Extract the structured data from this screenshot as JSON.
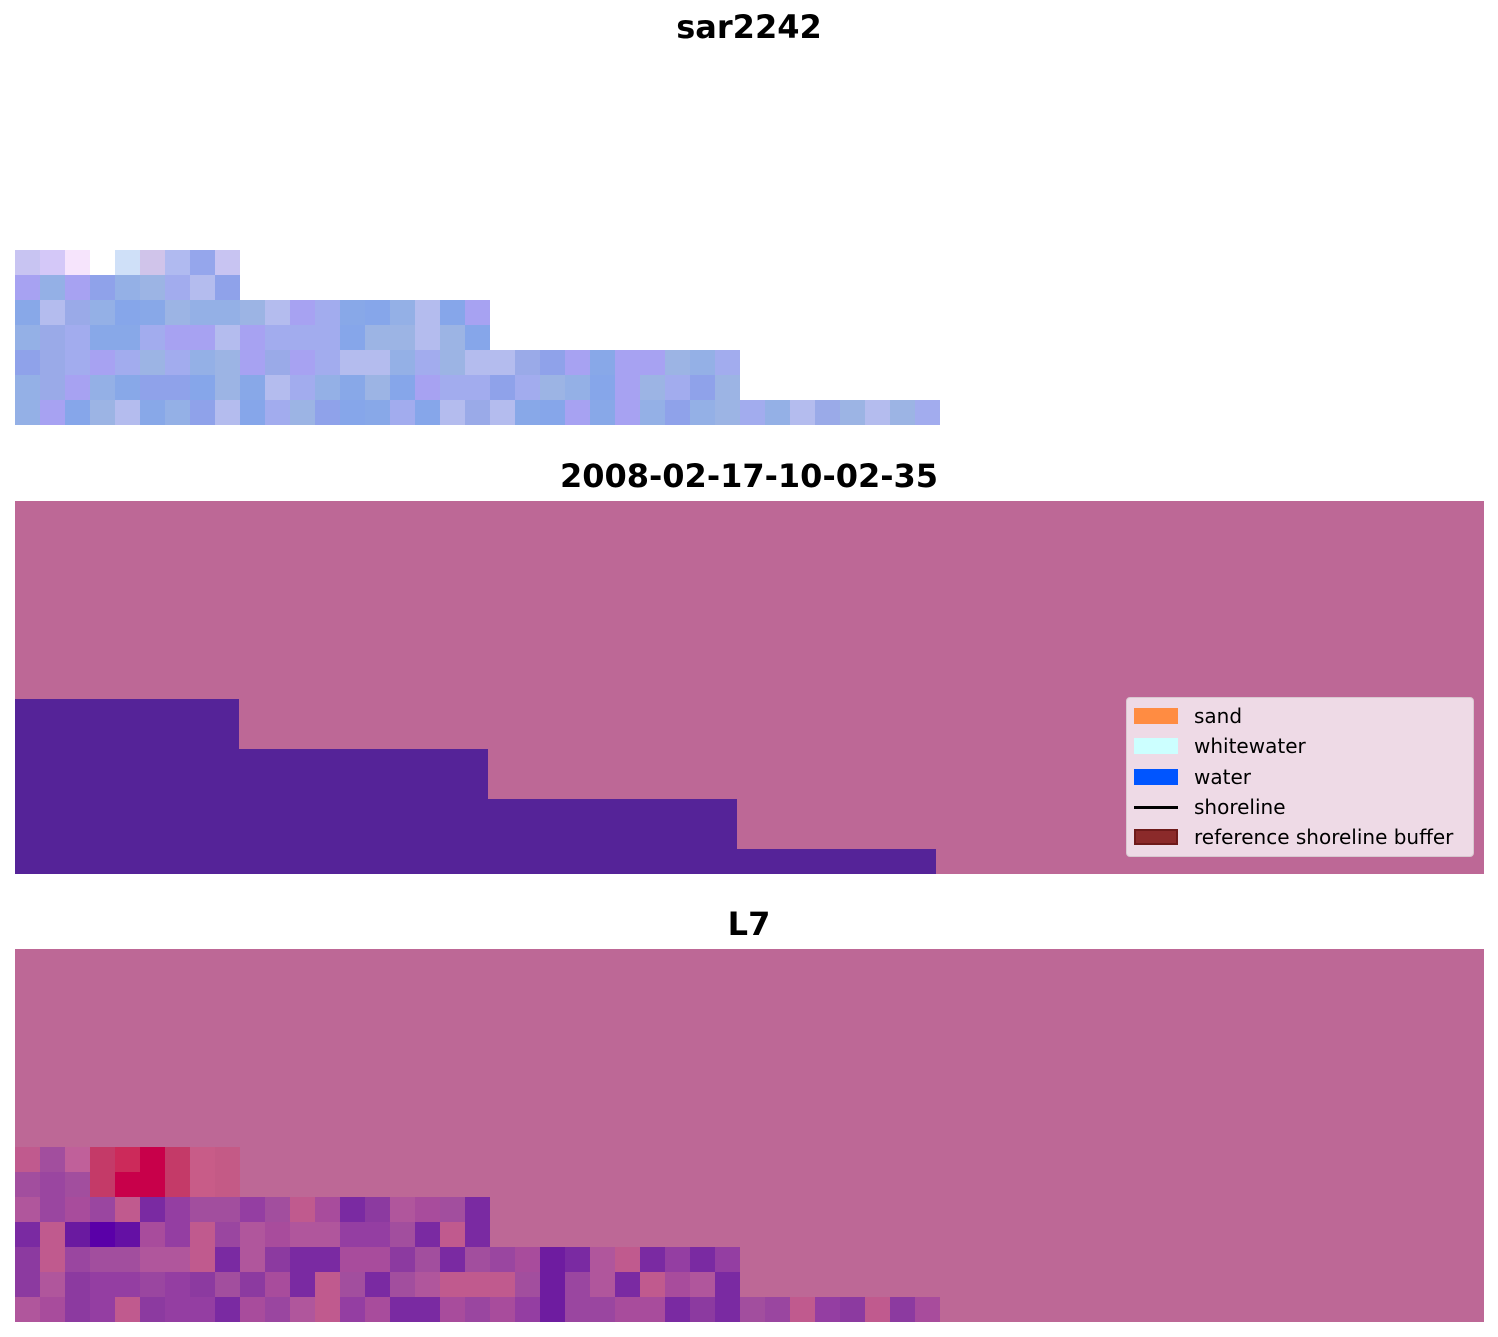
{
  "panels": [
    {
      "title": "sar2242"
    },
    {
      "title": "2008-02-17-10-02-35"
    },
    {
      "title": "L7"
    }
  ],
  "legend": {
    "items": [
      {
        "label": "sand",
        "color": "#ff8c42",
        "kind": "patch"
      },
      {
        "label": "whitewater",
        "color": "#ccffff",
        "kind": "patch"
      },
      {
        "label": "water",
        "color": "#0055ff",
        "kind": "patch"
      },
      {
        "label": "shoreline",
        "color": "#000000",
        "kind": "line"
      },
      {
        "label": "reference shoreline buffer",
        "color": "#8b2a2a",
        "kind": "patch"
      }
    ]
  },
  "colors": {
    "land_overlay": "#bd6896",
    "water_mask": "#552398",
    "sar_base": "#8fa2ea"
  }
}
